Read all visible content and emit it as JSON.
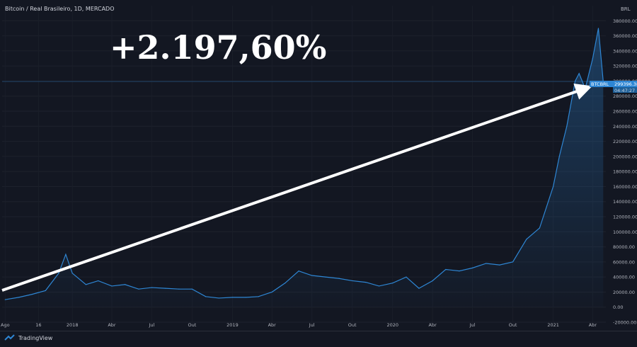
{
  "header": {
    "title": "Bitcoin / Real Brasileiro, 1D, MERCADO"
  },
  "annotation": {
    "gain_text": "+2.197,60%"
  },
  "price_label": {
    "symbol": "BTCBRL",
    "price": "299396.38",
    "countdown": "04:47:27"
  },
  "footer": {
    "brand": "TradingView"
  },
  "colors": {
    "line": "#2e86d4",
    "bg": "#131722",
    "arrow": "#ffffff",
    "label_bg": "#2e86d4"
  },
  "chart_data": {
    "type": "area",
    "currency_label": "BRL",
    "x_tick_labels": [
      "Ago",
      "16",
      "2018",
      "Abr",
      "Jul",
      "Out",
      "2019",
      "Abr",
      "Jul",
      "Out",
      "2020",
      "Abr",
      "Jul",
      "Out",
      "2021",
      "Abr"
    ],
    "y_tick_labels": [
      "380000.00",
      "360000.00",
      "340000.00",
      "320000.00",
      "300000.00",
      "280000.00",
      "260000.00",
      "240000.00",
      "220000.00",
      "200000.00",
      "180000.00",
      "160000.00",
      "140000.00",
      "120000.00",
      "100000.00",
      "80000.00",
      "60000.00",
      "40000.00",
      "20000.00",
      "0.00",
      "-20000.00"
    ],
    "ylim": [
      -20000,
      400000
    ],
    "x": [
      "2017-08",
      "2017-09",
      "2017-10",
      "2017-11",
      "2017-12",
      "2017-12-17",
      "2018-01",
      "2018-02",
      "2018-03",
      "2018-04",
      "2018-05",
      "2018-06",
      "2018-07",
      "2018-08",
      "2018-09",
      "2018-10",
      "2018-11",
      "2018-12",
      "2019-01",
      "2019-02",
      "2019-03",
      "2019-04",
      "2019-05",
      "2019-06",
      "2019-07",
      "2019-08",
      "2019-09",
      "2019-10",
      "2019-11",
      "2019-12",
      "2020-01",
      "2020-02",
      "2020-03",
      "2020-04",
      "2020-05",
      "2020-06",
      "2020-07",
      "2020-08",
      "2020-09",
      "2020-10",
      "2020-11",
      "2020-12",
      "2021-01",
      "2021-01-15",
      "2021-02",
      "2021-02-20",
      "2021-03",
      "2021-03-15",
      "2021-04",
      "2021-04-14",
      "2021-04-25"
    ],
    "values": [
      10000,
      13000,
      17000,
      22000,
      45000,
      70000,
      45000,
      30000,
      35000,
      28000,
      30000,
      24000,
      26000,
      25000,
      24000,
      24000,
      14000,
      12000,
      13000,
      13000,
      14000,
      20000,
      32000,
      48000,
      42000,
      40000,
      38000,
      35000,
      33000,
      28000,
      32000,
      40000,
      25000,
      35000,
      50000,
      48000,
      52000,
      58000,
      56000,
      60000,
      90000,
      105000,
      160000,
      200000,
      240000,
      300000,
      310000,
      290000,
      330000,
      370000,
      299396
    ]
  }
}
